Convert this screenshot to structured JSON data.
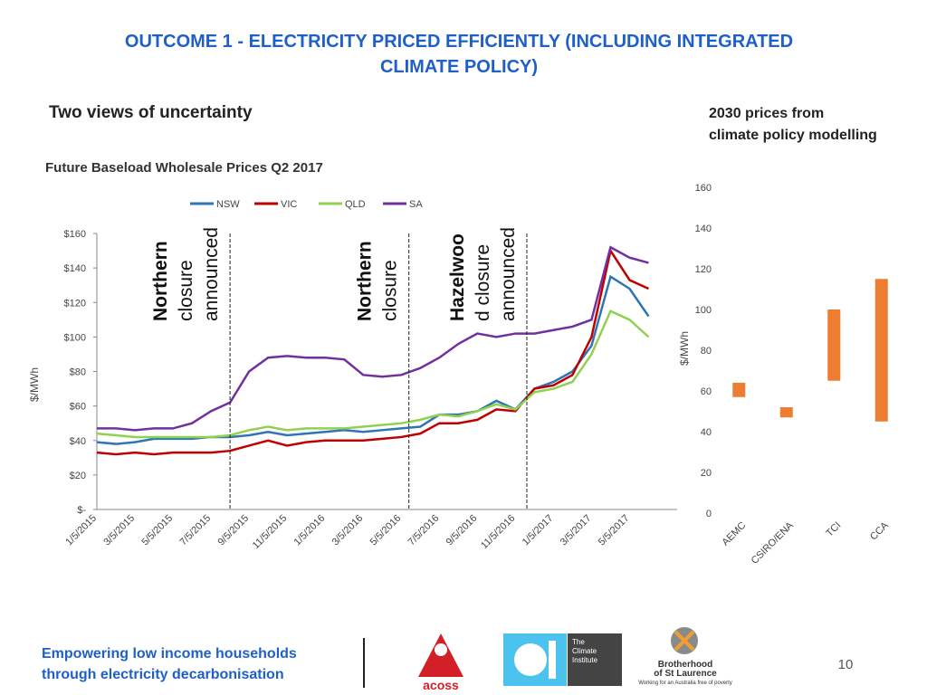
{
  "header": {
    "title_lines": [
      "OUTCOME 1 - ELECTRICITY PRICED EFFICIENTLY (INCLUDING INTEGRATED",
      "CLIMATE POLICY)"
    ],
    "subtitle": "Two views of uncertainty",
    "right_caption_lines": [
      "2030 prices from",
      "climate policy modelling"
    ]
  },
  "chart_data": [
    {
      "type": "line",
      "title": "Future Baseload Wholesale Prices Q2 2017",
      "y_label": "$/MWh",
      "categories": [
        "1/5/2015",
        null,
        "3/5/2015",
        null,
        "5/5/2015",
        null,
        "7/5/2015",
        null,
        "9/5/2015",
        null,
        "11/5/2015",
        null,
        "1/5/2016",
        null,
        "3/5/2016",
        null,
        "5/5/2016",
        null,
        "7/5/2016",
        null,
        "9/5/2016",
        null,
        "11/5/2016",
        null,
        "1/5/2017",
        null,
        "3/5/2017",
        null,
        "5/5/2017",
        null
      ],
      "series": [
        {
          "name": "NSW",
          "color": "#2e75b6",
          "values": [
            39,
            38,
            39,
            41,
            41,
            41,
            42,
            42,
            43,
            45,
            43,
            44,
            45,
            46,
            45,
            46,
            47,
            48,
            55,
            55,
            57,
            63,
            58,
            70,
            74,
            80,
            95,
            135,
            128,
            112
          ]
        },
        {
          "name": "VIC",
          "color": "#c00000",
          "values": [
            33,
            32,
            33,
            32,
            33,
            33,
            33,
            34,
            37,
            40,
            37,
            39,
            40,
            40,
            40,
            41,
            42,
            44,
            50,
            50,
            52,
            58,
            57,
            70,
            72,
            78,
            100,
            150,
            133,
            128
          ]
        },
        {
          "name": "QLD",
          "color": "#92d050",
          "values": [
            44,
            43,
            42,
            42,
            42,
            42,
            42,
            43,
            46,
            48,
            46,
            47,
            47,
            47,
            48,
            49,
            50,
            52,
            55,
            54,
            57,
            61,
            58,
            68,
            70,
            74,
            90,
            115,
            110,
            100
          ]
        },
        {
          "name": "SA",
          "color": "#7030a0",
          "values": [
            47,
            47,
            46,
            47,
            47,
            50,
            57,
            62,
            80,
            88,
            89,
            88,
            88,
            87,
            78,
            77,
            78,
            82,
            88,
            96,
            102,
            100,
            102,
            102,
            104,
            106,
            110,
            152,
            146,
            143
          ]
        }
      ],
      "ylim": [
        0,
        160
      ],
      "yticks": [
        {
          "value": 0,
          "label": "$-"
        },
        {
          "value": 20,
          "label": "$20"
        },
        {
          "value": 40,
          "label": "$40"
        },
        {
          "value": 60,
          "label": "$60"
        },
        {
          "value": 80,
          "label": "$80"
        },
        {
          "value": 100,
          "label": "$100"
        },
        {
          "value": 120,
          "label": "$120"
        },
        {
          "value": 140,
          "label": "$140"
        },
        {
          "value": 160,
          "label": "$160"
        }
      ],
      "legend": "top",
      "annotations": [
        {
          "x": 7,
          "lines": [
            "Northern",
            "closure",
            "announced"
          ]
        },
        {
          "x": 16.4,
          "lines": [
            "Northern",
            "closure"
          ]
        },
        {
          "x": 22.6,
          "lines": [
            "Hazelwoo",
            "d closure",
            "announced"
          ]
        }
      ]
    },
    {
      "type": "range",
      "y_label": "$/MWh",
      "categories": [
        "AEMC",
        "CSIRO/ENA",
        "TCI",
        "CCA"
      ],
      "low": [
        57,
        47,
        65,
        45
      ],
      "high": [
        64,
        52,
        100,
        115
      ],
      "color": "#ed7d31",
      "ylim": [
        0,
        160
      ],
      "yticks": [
        0,
        20,
        40,
        60,
        80,
        100,
        120,
        140,
        160
      ]
    }
  ],
  "footer": {
    "lines": [
      "Empowering low income households",
      "through electricity decarbonisation"
    ],
    "page": "10",
    "logos": {
      "acoss": "acoss",
      "climate_institute": [
        "The",
        "Climate",
        "Institute"
      ],
      "brotherhood": [
        "Brotherhood",
        "of St Laurence"
      ],
      "brotherhood_tagline": "Working for an Australia free of poverty"
    }
  }
}
